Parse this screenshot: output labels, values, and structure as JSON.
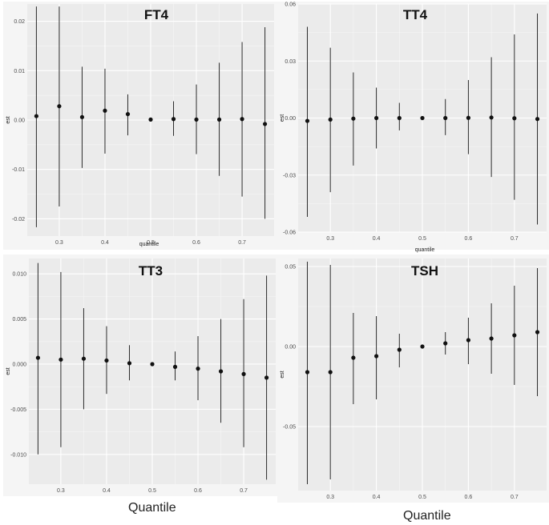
{
  "figure": {
    "bottom_labels": [
      "Quantile",
      "Quantile"
    ]
  },
  "chart_data": [
    {
      "type": "scatter",
      "title": "FT4",
      "xlabel": "quantile",
      "ylabel": "est",
      "x": [
        0.25,
        0.3,
        0.35,
        0.4,
        0.45,
        0.5,
        0.55,
        0.6,
        0.65,
        0.7,
        0.75
      ],
      "est": [
        0.0008,
        0.0028,
        0.0006,
        0.0019,
        0.0012,
        0.0001,
        0.0002,
        0.0001,
        0.0001,
        0.0002,
        -0.0008
      ],
      "lower": [
        -0.0217,
        -0.0175,
        -0.0097,
        -0.0068,
        -0.0031,
        0.0001,
        -0.0032,
        -0.0069,
        -0.0113,
        -0.0155,
        -0.02
      ],
      "upper": [
        0.023,
        0.023,
        0.0108,
        0.0104,
        0.0052,
        0.0001,
        0.0038,
        0.0072,
        0.0116,
        0.0158,
        0.0188
      ],
      "xlim": [
        0.23,
        0.77
      ],
      "ylim": [
        -0.0235,
        0.0235
      ],
      "xticks": [
        "0.3",
        "0.4",
        "0.5",
        "0.6",
        "0.7"
      ],
      "yticks": [
        "-0.02",
        "-0.01",
        "0.00",
        "0.01",
        "0.02"
      ],
      "grid": true
    },
    {
      "type": "scatter",
      "title": "TT4",
      "xlabel": "quantile",
      "ylabel": "est",
      "x": [
        0.25,
        0.3,
        0.35,
        0.4,
        0.45,
        0.5,
        0.55,
        0.6,
        0.65,
        0.7,
        0.75
      ],
      "est": [
        -0.0015,
        -0.0008,
        -0.0003,
        0.0,
        0.0,
        0.0,
        0.0,
        0.0001,
        0.0003,
        -0.0001,
        -0.0005
      ],
      "lower": [
        -0.052,
        -0.039,
        -0.025,
        -0.016,
        -0.0065,
        0.0,
        -0.009,
        -0.019,
        -0.031,
        -0.043,
        -0.056
      ],
      "upper": [
        0.048,
        0.037,
        0.024,
        0.016,
        0.008,
        0.0,
        0.01,
        0.02,
        0.032,
        0.044,
        0.055
      ],
      "xlim": [
        0.23,
        0.77
      ],
      "ylim": [
        -0.06,
        0.06
      ],
      "xticks": [
        "0.3",
        "0.4",
        "0.5",
        "0.6",
        "0.7"
      ],
      "yticks": [
        "-0.06",
        "-0.03",
        "0.00",
        "0.03",
        "0.06"
      ],
      "grid": true
    },
    {
      "type": "scatter",
      "title": "TT3",
      "xlabel": "",
      "ylabel": "est",
      "x": [
        0.25,
        0.3,
        0.35,
        0.4,
        0.45,
        0.5,
        0.55,
        0.6,
        0.65,
        0.7,
        0.75
      ],
      "est": [
        0.0007,
        0.0005,
        0.0006,
        0.0004,
        0.0001,
        0.0,
        -0.0003,
        -0.0005,
        -0.0008,
        -0.0011,
        -0.0015
      ],
      "lower": [
        -0.01,
        -0.0092,
        -0.005,
        -0.0033,
        -0.0018,
        0.0,
        -0.0018,
        -0.004,
        -0.0065,
        -0.0092,
        -0.0128
      ],
      "upper": [
        0.0112,
        0.0102,
        0.0062,
        0.0042,
        0.0021,
        0.0,
        0.0014,
        0.0031,
        0.005,
        0.0072,
        0.0098
      ],
      "xlim": [
        0.23,
        0.77
      ],
      "ylim": [
        -0.0133,
        0.0117
      ],
      "xticks": [
        "0.3",
        "0.4",
        "0.5",
        "0.6",
        "0.7"
      ],
      "yticks": [
        "-0.010",
        "-0.005",
        "0.000",
        "0.005",
        "0.010"
      ],
      "grid": true
    },
    {
      "type": "scatter",
      "title": "TSH",
      "xlabel": "",
      "ylabel": "est",
      "x": [
        0.25,
        0.3,
        0.35,
        0.4,
        0.45,
        0.5,
        0.55,
        0.6,
        0.65,
        0.7,
        0.75
      ],
      "est": [
        -0.016,
        -0.016,
        -0.007,
        -0.006,
        -0.002,
        0.0,
        0.002,
        0.004,
        0.005,
        0.007,
        0.009
      ],
      "lower": [
        -0.086,
        -0.083,
        -0.036,
        -0.033,
        -0.013,
        0.0,
        -0.005,
        -0.011,
        -0.017,
        -0.024,
        -0.031
      ],
      "upper": [
        0.053,
        0.051,
        0.021,
        0.019,
        0.008,
        0.0,
        0.009,
        0.018,
        0.027,
        0.038,
        0.049
      ],
      "xlim": [
        0.23,
        0.77
      ],
      "ylim": [
        -0.09,
        0.055
      ],
      "xticks": [
        "0.3",
        "0.4",
        "0.5",
        "0.6",
        "0.7"
      ],
      "yticks": [
        "-0.05",
        "0.00",
        "0.05"
      ],
      "grid": true
    }
  ]
}
